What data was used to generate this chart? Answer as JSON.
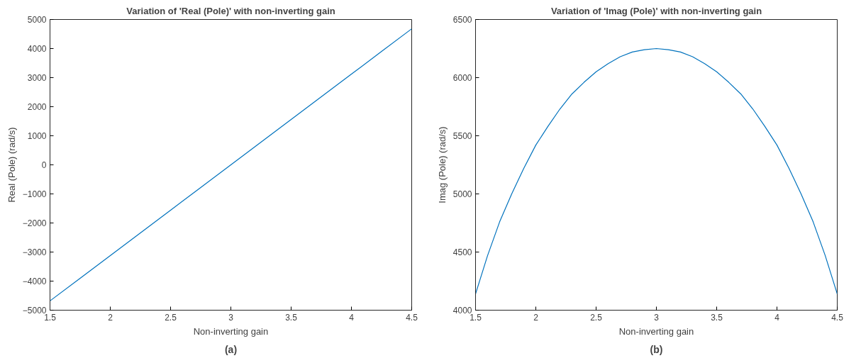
{
  "chart_data": [
    {
      "type": "line",
      "title": "Variation of 'Real (Pole)' with non-inverting gain",
      "xlabel": "Non-inverting gain",
      "ylabel": "Real (Pole) (rad/s)",
      "annotations": [
        "(a)"
      ],
      "x": [
        1.5,
        1.75,
        2.0,
        2.25,
        2.5,
        2.75,
        3.0,
        3.25,
        3.5,
        3.75,
        4.0,
        4.25,
        4.5
      ],
      "series": [
        {
          "color": "#0072bd",
          "values": [
            -4680,
            -3900,
            -3120,
            -2340,
            -1560,
            -780,
            0,
            780,
            1560,
            2340,
            3120,
            3900,
            4680
          ]
        }
      ],
      "xlim": [
        1.5,
        4.5
      ],
      "xticks": [
        1.5,
        2,
        2.5,
        3,
        3.5,
        4,
        4.5
      ],
      "ylim": [
        -5000,
        5000
      ],
      "yticks": [
        -5000,
        -4000,
        -3000,
        -2000,
        -1000,
        0,
        1000,
        2000,
        3000,
        4000,
        5000
      ],
      "grid": false
    },
    {
      "type": "line",
      "title": "Variation of 'Imag (Pole)' with non-inverting gain",
      "xlabel": "Non-inverting gain",
      "ylabel": "Imag (Pole) (rad/s)",
      "annotations": [
        "(b)"
      ],
      "x": [
        1.5,
        1.6,
        1.7,
        1.8,
        1.9,
        2.0,
        2.1,
        2.2,
        2.3,
        2.4,
        2.5,
        2.6,
        2.7,
        2.8,
        2.9,
        3.0,
        3.1,
        3.2,
        3.3,
        3.4,
        3.5,
        3.6,
        3.7,
        3.8,
        3.9,
        4.0,
        4.1,
        4.2,
        4.3,
        4.4,
        4.5
      ],
      "series": [
        {
          "color": "#0072bd",
          "values": [
            4140,
            4470,
            4760,
            5000,
            5220,
            5420,
            5580,
            5730,
            5860,
            5960,
            6050,
            6120,
            6180,
            6220,
            6240,
            6250,
            6240,
            6220,
            6180,
            6120,
            6050,
            5960,
            5860,
            5730,
            5580,
            5420,
            5220,
            5000,
            4760,
            4470,
            4140
          ]
        }
      ],
      "xlim": [
        1.5,
        4.5
      ],
      "xticks": [
        1.5,
        2,
        2.5,
        3,
        3.5,
        4,
        4.5
      ],
      "ylim": [
        4000,
        6500
      ],
      "yticks": [
        4000,
        4500,
        5000,
        5500,
        6000,
        6500
      ],
      "grid": false
    }
  ]
}
